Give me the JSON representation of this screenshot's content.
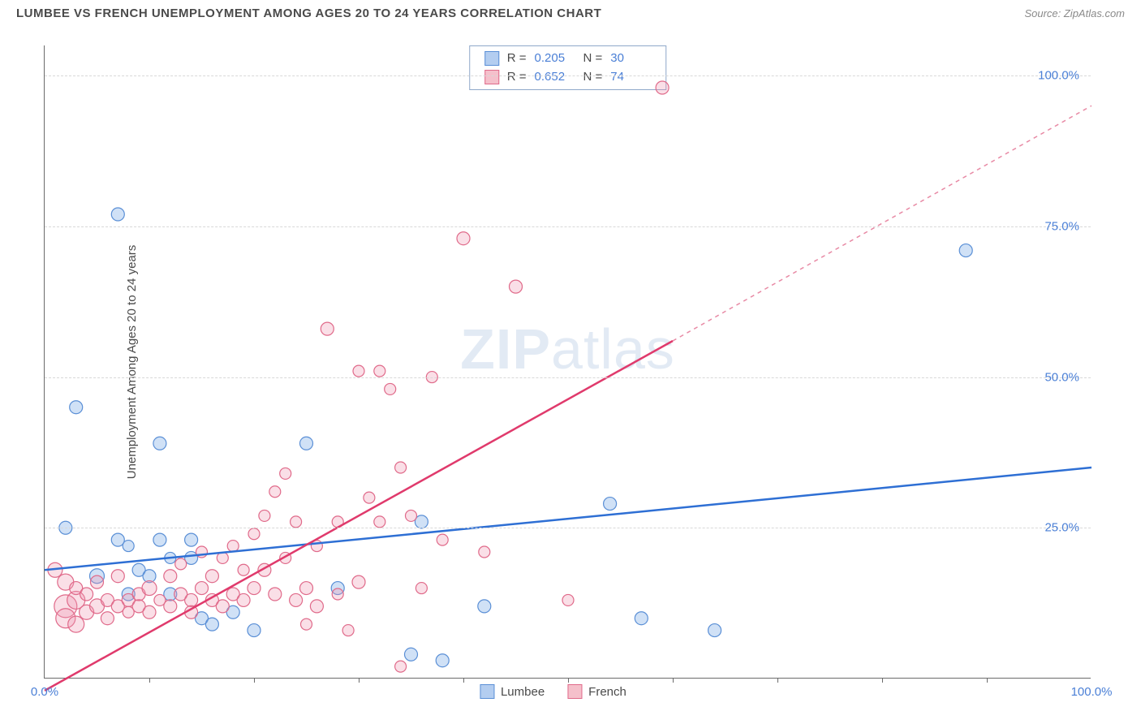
{
  "title": "LUMBEE VS FRENCH UNEMPLOYMENT AMONG AGES 20 TO 24 YEARS CORRELATION CHART",
  "source": "Source: ZipAtlas.com",
  "y_axis_label": "Unemployment Among Ages 20 to 24 years",
  "watermark": {
    "prefix": "ZIP",
    "suffix": "atlas"
  },
  "chart": {
    "type": "scatter",
    "xlim": [
      0,
      100
    ],
    "ylim": [
      0,
      105
    ],
    "x_tick_labels": [
      {
        "x": 0,
        "label": "0.0%"
      },
      {
        "x": 100,
        "label": "100.0%"
      }
    ],
    "x_minor_ticks": [
      10,
      20,
      30,
      40,
      50,
      60,
      70,
      80,
      90
    ],
    "y_ticks": [
      {
        "y": 25,
        "label": "25.0%"
      },
      {
        "y": 50,
        "label": "50.0%"
      },
      {
        "y": 75,
        "label": "75.0%"
      },
      {
        "y": 100,
        "label": "100.0%"
      }
    ],
    "series": [
      {
        "name": "Lumbee",
        "color_fill": "rgba(120,170,230,0.35)",
        "color_stroke": "#5a8fd6",
        "stats": {
          "R": "0.205",
          "N": "30"
        },
        "trend": {
          "x1": 0,
          "y1": 18,
          "x2": 100,
          "y2": 35,
          "color": "#2e6fd4",
          "width": 2.5
        },
        "points": [
          {
            "x": 2,
            "y": 25,
            "r": 8
          },
          {
            "x": 3,
            "y": 45,
            "r": 8
          },
          {
            "x": 5,
            "y": 17,
            "r": 9
          },
          {
            "x": 7,
            "y": 77,
            "r": 8
          },
          {
            "x": 7,
            "y": 23,
            "r": 8
          },
          {
            "x": 8,
            "y": 22,
            "r": 7
          },
          {
            "x": 8,
            "y": 14,
            "r": 8
          },
          {
            "x": 9,
            "y": 18,
            "r": 8
          },
          {
            "x": 10,
            "y": 17,
            "r": 8
          },
          {
            "x": 11,
            "y": 23,
            "r": 8
          },
          {
            "x": 11,
            "y": 39,
            "r": 8
          },
          {
            "x": 12,
            "y": 14,
            "r": 8
          },
          {
            "x": 12,
            "y": 20,
            "r": 7
          },
          {
            "x": 14,
            "y": 23,
            "r": 8
          },
          {
            "x": 14,
            "y": 20,
            "r": 8
          },
          {
            "x": 15,
            "y": 10,
            "r": 8
          },
          {
            "x": 16,
            "y": 9,
            "r": 8
          },
          {
            "x": 18,
            "y": 11,
            "r": 8
          },
          {
            "x": 20,
            "y": 8,
            "r": 8
          },
          {
            "x": 25,
            "y": 39,
            "r": 8
          },
          {
            "x": 28,
            "y": 15,
            "r": 8
          },
          {
            "x": 35,
            "y": 4,
            "r": 8
          },
          {
            "x": 36,
            "y": 26,
            "r": 8
          },
          {
            "x": 38,
            "y": 3,
            "r": 8
          },
          {
            "x": 42,
            "y": 12,
            "r": 8
          },
          {
            "x": 54,
            "y": 29,
            "r": 8
          },
          {
            "x": 57,
            "y": 10,
            "r": 8
          },
          {
            "x": 64,
            "y": 8,
            "r": 8
          },
          {
            "x": 88,
            "y": 71,
            "r": 8
          }
        ]
      },
      {
        "name": "French",
        "color_fill": "rgba(240,150,175,0.30)",
        "color_stroke": "#e06a8a",
        "stats": {
          "R": "0.652",
          "N": "74"
        },
        "trend": {
          "x1": 0,
          "y1": -2,
          "x2": 60,
          "y2": 56,
          "color": "#e03a6c",
          "width": 2.5,
          "extrapolate": {
            "x2": 100,
            "y2": 95
          }
        },
        "points": [
          {
            "x": 1,
            "y": 18,
            "r": 9
          },
          {
            "x": 2,
            "y": 12,
            "r": 14
          },
          {
            "x": 2,
            "y": 16,
            "r": 10
          },
          {
            "x": 2,
            "y": 10,
            "r": 12
          },
          {
            "x": 3,
            "y": 13,
            "r": 11
          },
          {
            "x": 3,
            "y": 9,
            "r": 10
          },
          {
            "x": 3,
            "y": 15,
            "r": 8
          },
          {
            "x": 4,
            "y": 11,
            "r": 9
          },
          {
            "x": 4,
            "y": 14,
            "r": 8
          },
          {
            "x": 5,
            "y": 12,
            "r": 9
          },
          {
            "x": 5,
            "y": 16,
            "r": 8
          },
          {
            "x": 6,
            "y": 13,
            "r": 8
          },
          {
            "x": 6,
            "y": 10,
            "r": 8
          },
          {
            "x": 7,
            "y": 12,
            "r": 8
          },
          {
            "x": 7,
            "y": 17,
            "r": 8
          },
          {
            "x": 8,
            "y": 13,
            "r": 8
          },
          {
            "x": 8,
            "y": 11,
            "r": 7
          },
          {
            "x": 9,
            "y": 14,
            "r": 8
          },
          {
            "x": 9,
            "y": 12,
            "r": 8
          },
          {
            "x": 10,
            "y": 15,
            "r": 9
          },
          {
            "x": 10,
            "y": 11,
            "r": 8
          },
          {
            "x": 11,
            "y": 13,
            "r": 7
          },
          {
            "x": 12,
            "y": 17,
            "r": 8
          },
          {
            "x": 12,
            "y": 12,
            "r": 8
          },
          {
            "x": 13,
            "y": 14,
            "r": 8
          },
          {
            "x": 13,
            "y": 19,
            "r": 7
          },
          {
            "x": 14,
            "y": 13,
            "r": 8
          },
          {
            "x": 14,
            "y": 11,
            "r": 8
          },
          {
            "x": 15,
            "y": 15,
            "r": 8
          },
          {
            "x": 15,
            "y": 21,
            "r": 7
          },
          {
            "x": 16,
            "y": 13,
            "r": 8
          },
          {
            "x": 16,
            "y": 17,
            "r": 8
          },
          {
            "x": 17,
            "y": 12,
            "r": 8
          },
          {
            "x": 17,
            "y": 20,
            "r": 7
          },
          {
            "x": 18,
            "y": 14,
            "r": 8
          },
          {
            "x": 18,
            "y": 22,
            "r": 7
          },
          {
            "x": 19,
            "y": 13,
            "r": 8
          },
          {
            "x": 19,
            "y": 18,
            "r": 7
          },
          {
            "x": 20,
            "y": 15,
            "r": 8
          },
          {
            "x": 20,
            "y": 24,
            "r": 7
          },
          {
            "x": 21,
            "y": 18,
            "r": 8
          },
          {
            "x": 21,
            "y": 27,
            "r": 7
          },
          {
            "x": 22,
            "y": 31,
            "r": 7
          },
          {
            "x": 22,
            "y": 14,
            "r": 8
          },
          {
            "x": 23,
            "y": 20,
            "r": 7
          },
          {
            "x": 23,
            "y": 34,
            "r": 7
          },
          {
            "x": 24,
            "y": 13,
            "r": 8
          },
          {
            "x": 24,
            "y": 26,
            "r": 7
          },
          {
            "x": 25,
            "y": 15,
            "r": 8
          },
          {
            "x": 25,
            "y": 9,
            "r": 7
          },
          {
            "x": 26,
            "y": 12,
            "r": 8
          },
          {
            "x": 26,
            "y": 22,
            "r": 7
          },
          {
            "x": 27,
            "y": 58,
            "r": 8
          },
          {
            "x": 28,
            "y": 14,
            "r": 7
          },
          {
            "x": 28,
            "y": 26,
            "r": 7
          },
          {
            "x": 29,
            "y": 8,
            "r": 7
          },
          {
            "x": 30,
            "y": 51,
            "r": 7
          },
          {
            "x": 30,
            "y": 16,
            "r": 8
          },
          {
            "x": 31,
            "y": 30,
            "r": 7
          },
          {
            "x": 32,
            "y": 51,
            "r": 7
          },
          {
            "x": 32,
            "y": 26,
            "r": 7
          },
          {
            "x": 33,
            "y": 48,
            "r": 7
          },
          {
            "x": 34,
            "y": 35,
            "r": 7
          },
          {
            "x": 34,
            "y": 2,
            "r": 7
          },
          {
            "x": 35,
            "y": 27,
            "r": 7
          },
          {
            "x": 36,
            "y": 15,
            "r": 7
          },
          {
            "x": 37,
            "y": 50,
            "r": 7
          },
          {
            "x": 38,
            "y": 23,
            "r": 7
          },
          {
            "x": 40,
            "y": 73,
            "r": 8
          },
          {
            "x": 42,
            "y": 21,
            "r": 7
          },
          {
            "x": 45,
            "y": 65,
            "r": 8
          },
          {
            "x": 50,
            "y": 13,
            "r": 7
          },
          {
            "x": 59,
            "y": 98,
            "r": 8
          }
        ]
      }
    ]
  },
  "legend_bottom": [
    {
      "swatch": "blue",
      "label": "Lumbee"
    },
    {
      "swatch": "pink",
      "label": "French"
    }
  ]
}
